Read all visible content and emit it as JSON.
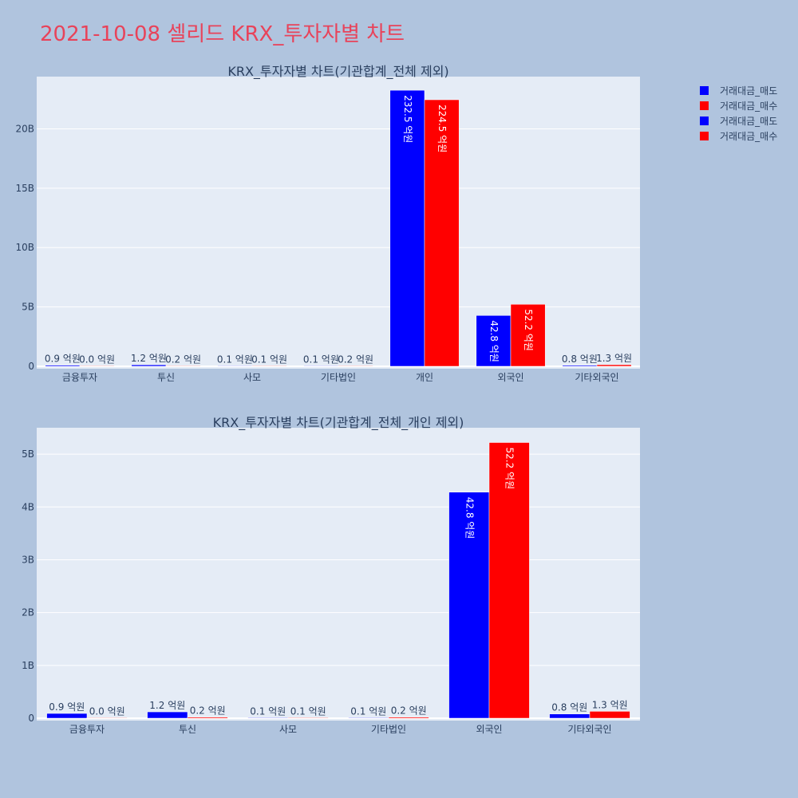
{
  "page": {
    "title": "2021-10-08 셀리드 KRX_투자자별 차트"
  },
  "colors": {
    "sell": "#0000ff",
    "buy": "#ff0000",
    "plot_bg": "#e5ecf6",
    "page_bg": "#b0c4de",
    "title": "#e8435a"
  },
  "legend": {
    "items": [
      {
        "label": "거래대금_매도",
        "color": "#0000ff"
      },
      {
        "label": "거래대금_매수",
        "color": "#ff0000"
      },
      {
        "label": "거래대금_매도",
        "color": "#0000ff"
      },
      {
        "label": "거래대금_매수",
        "color": "#ff0000"
      }
    ]
  },
  "chart_data": [
    {
      "type": "bar",
      "title": "KRX_투자자별 차트(기관합계_전체 제외)",
      "categories": [
        "금융투자",
        "투신",
        "사모",
        "기타법인",
        "개인",
        "외국인",
        "기타외국인"
      ],
      "series": [
        {
          "name": "거래대금_매도",
          "values": [
            0.09,
            0.12,
            0.01,
            0.01,
            23.25,
            4.28,
            0.08
          ],
          "labels": [
            "0.9 억원",
            "1.2 억원",
            "0.1 억원",
            "0.1 억원",
            "232.5 억원",
            "42.8 억원",
            "0.8 억원"
          ]
        },
        {
          "name": "거래대금_매수",
          "values": [
            0.0,
            0.02,
            0.01,
            0.02,
            22.45,
            5.22,
            0.13
          ],
          "labels": [
            "0.0 억원",
            "0.2 억원",
            "0.1 억원",
            "0.2 억원",
            "224.5 억원",
            "52.2 억원",
            "1.3 억원"
          ]
        }
      ],
      "yticks": [
        0,
        5,
        10,
        15,
        20
      ],
      "ytick_labels": [
        "0",
        "5B",
        "10B",
        "15B",
        "20B"
      ],
      "ylim": [
        0,
        24.4
      ],
      "grid": true
    },
    {
      "type": "bar",
      "title": "KRX_투자자별 차트(기관합계_전체_개인 제외)",
      "categories": [
        "금융투자",
        "투신",
        "사모",
        "기타법인",
        "외국인",
        "기타외국인"
      ],
      "series": [
        {
          "name": "거래대금_매도",
          "values": [
            0.09,
            0.12,
            0.01,
            0.01,
            4.28,
            0.08
          ],
          "labels": [
            "0.9 억원",
            "1.2 억원",
            "0.1 억원",
            "0.1 억원",
            "42.8 억원",
            "0.8 억원"
          ]
        },
        {
          "name": "거래대금_매수",
          "values": [
            0.0,
            0.02,
            0.01,
            0.02,
            5.22,
            0.13
          ],
          "labels": [
            "0.0 억원",
            "0.2 억원",
            "0.1 억원",
            "0.2 억원",
            "52.2 억원",
            "1.3 억원"
          ]
        }
      ],
      "yticks": [
        0,
        1,
        2,
        3,
        4,
        5
      ],
      "ytick_labels": [
        "0",
        "1B",
        "2B",
        "3B",
        "4B",
        "5B"
      ],
      "ylim": [
        0,
        5.5
      ],
      "grid": true
    }
  ]
}
